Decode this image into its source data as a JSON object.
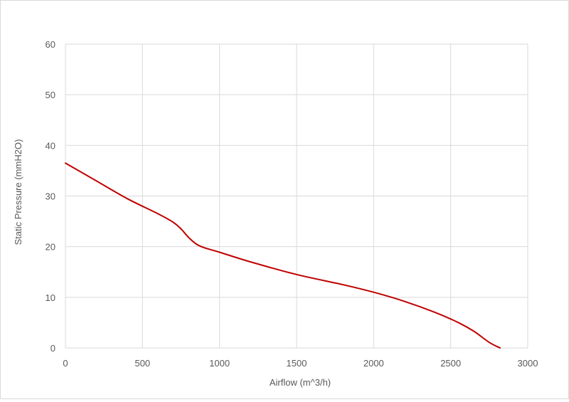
{
  "chart_data": {
    "type": "line",
    "title": "",
    "xlabel": "Airflow (m^3/h)",
    "ylabel": "Static Pressure (mmH2O)",
    "xlim": [
      0,
      3000
    ],
    "ylim": [
      0,
      60
    ],
    "x_ticks": [
      0,
      500,
      1000,
      1500,
      2000,
      2500,
      3000
    ],
    "y_ticks": [
      0,
      10,
      20,
      30,
      40,
      50,
      60
    ],
    "x_tick_labels": [
      "0",
      "500",
      "1000",
      "1500",
      "2000",
      "2500",
      "3000"
    ],
    "y_tick_labels": [
      "0",
      "10",
      "20",
      "30",
      "40",
      "50",
      "60"
    ],
    "grid": true,
    "legend": "none",
    "series": [
      {
        "color": "#c00000",
        "x": [
          0,
          200,
          400,
          600,
          700,
          750,
          800,
          850,
          900,
          1000,
          1200,
          1500,
          1800,
          2000,
          2200,
          2400,
          2550,
          2650,
          2750,
          2820
        ],
        "y": [
          36.5,
          33.0,
          29.5,
          26.5,
          24.8,
          23.5,
          21.8,
          20.5,
          19.8,
          18.9,
          17.0,
          14.5,
          12.5,
          11.0,
          9.2,
          7.0,
          5.0,
          3.3,
          1.1,
          0
        ]
      }
    ]
  }
}
